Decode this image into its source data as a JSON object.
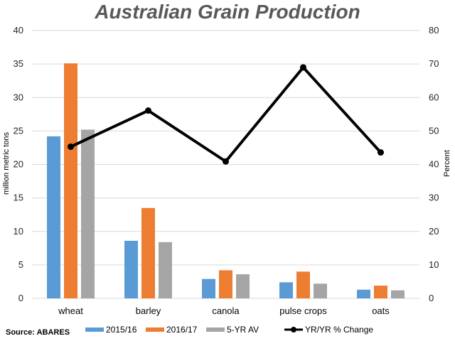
{
  "source": "Source: ABARES",
  "chart_data": {
    "type": "bar",
    "title": "Australian Grain Production",
    "categories": [
      "wheat",
      "barley",
      "canola",
      "pulse crops",
      "oats"
    ],
    "ylabel": "million metric tons",
    "y2label": "Percent",
    "ylim": [
      0,
      40
    ],
    "y2lim": [
      0,
      80
    ],
    "yticks": [
      "0",
      "5",
      "10",
      "15",
      "20",
      "25",
      "30",
      "35",
      "40"
    ],
    "y2ticks": [
      "0",
      "10",
      "20",
      "30",
      "40",
      "50",
      "60",
      "70",
      "80"
    ],
    "grid": true,
    "legend_position": "bottom",
    "series": [
      {
        "name": "2015/16",
        "type": "bar",
        "axis": "left",
        "color": "#5b9bd5",
        "values": [
          24.2,
          8.6,
          2.9,
          2.4,
          1.3
        ]
      },
      {
        "name": "2016/17",
        "type": "bar",
        "axis": "left",
        "color": "#ed7d31",
        "values": [
          35.1,
          13.5,
          4.2,
          4.0,
          1.9
        ]
      },
      {
        "name": "5-YR AV",
        "type": "bar",
        "axis": "left",
        "color": "#a5a5a5",
        "values": [
          25.2,
          8.4,
          3.6,
          2.2,
          1.2
        ]
      },
      {
        "name": "YR/YR % Change",
        "type": "line",
        "axis": "right",
        "color": "#000000",
        "values": [
          45.3,
          56.1,
          40.9,
          69.0,
          43.6
        ]
      }
    ]
  }
}
